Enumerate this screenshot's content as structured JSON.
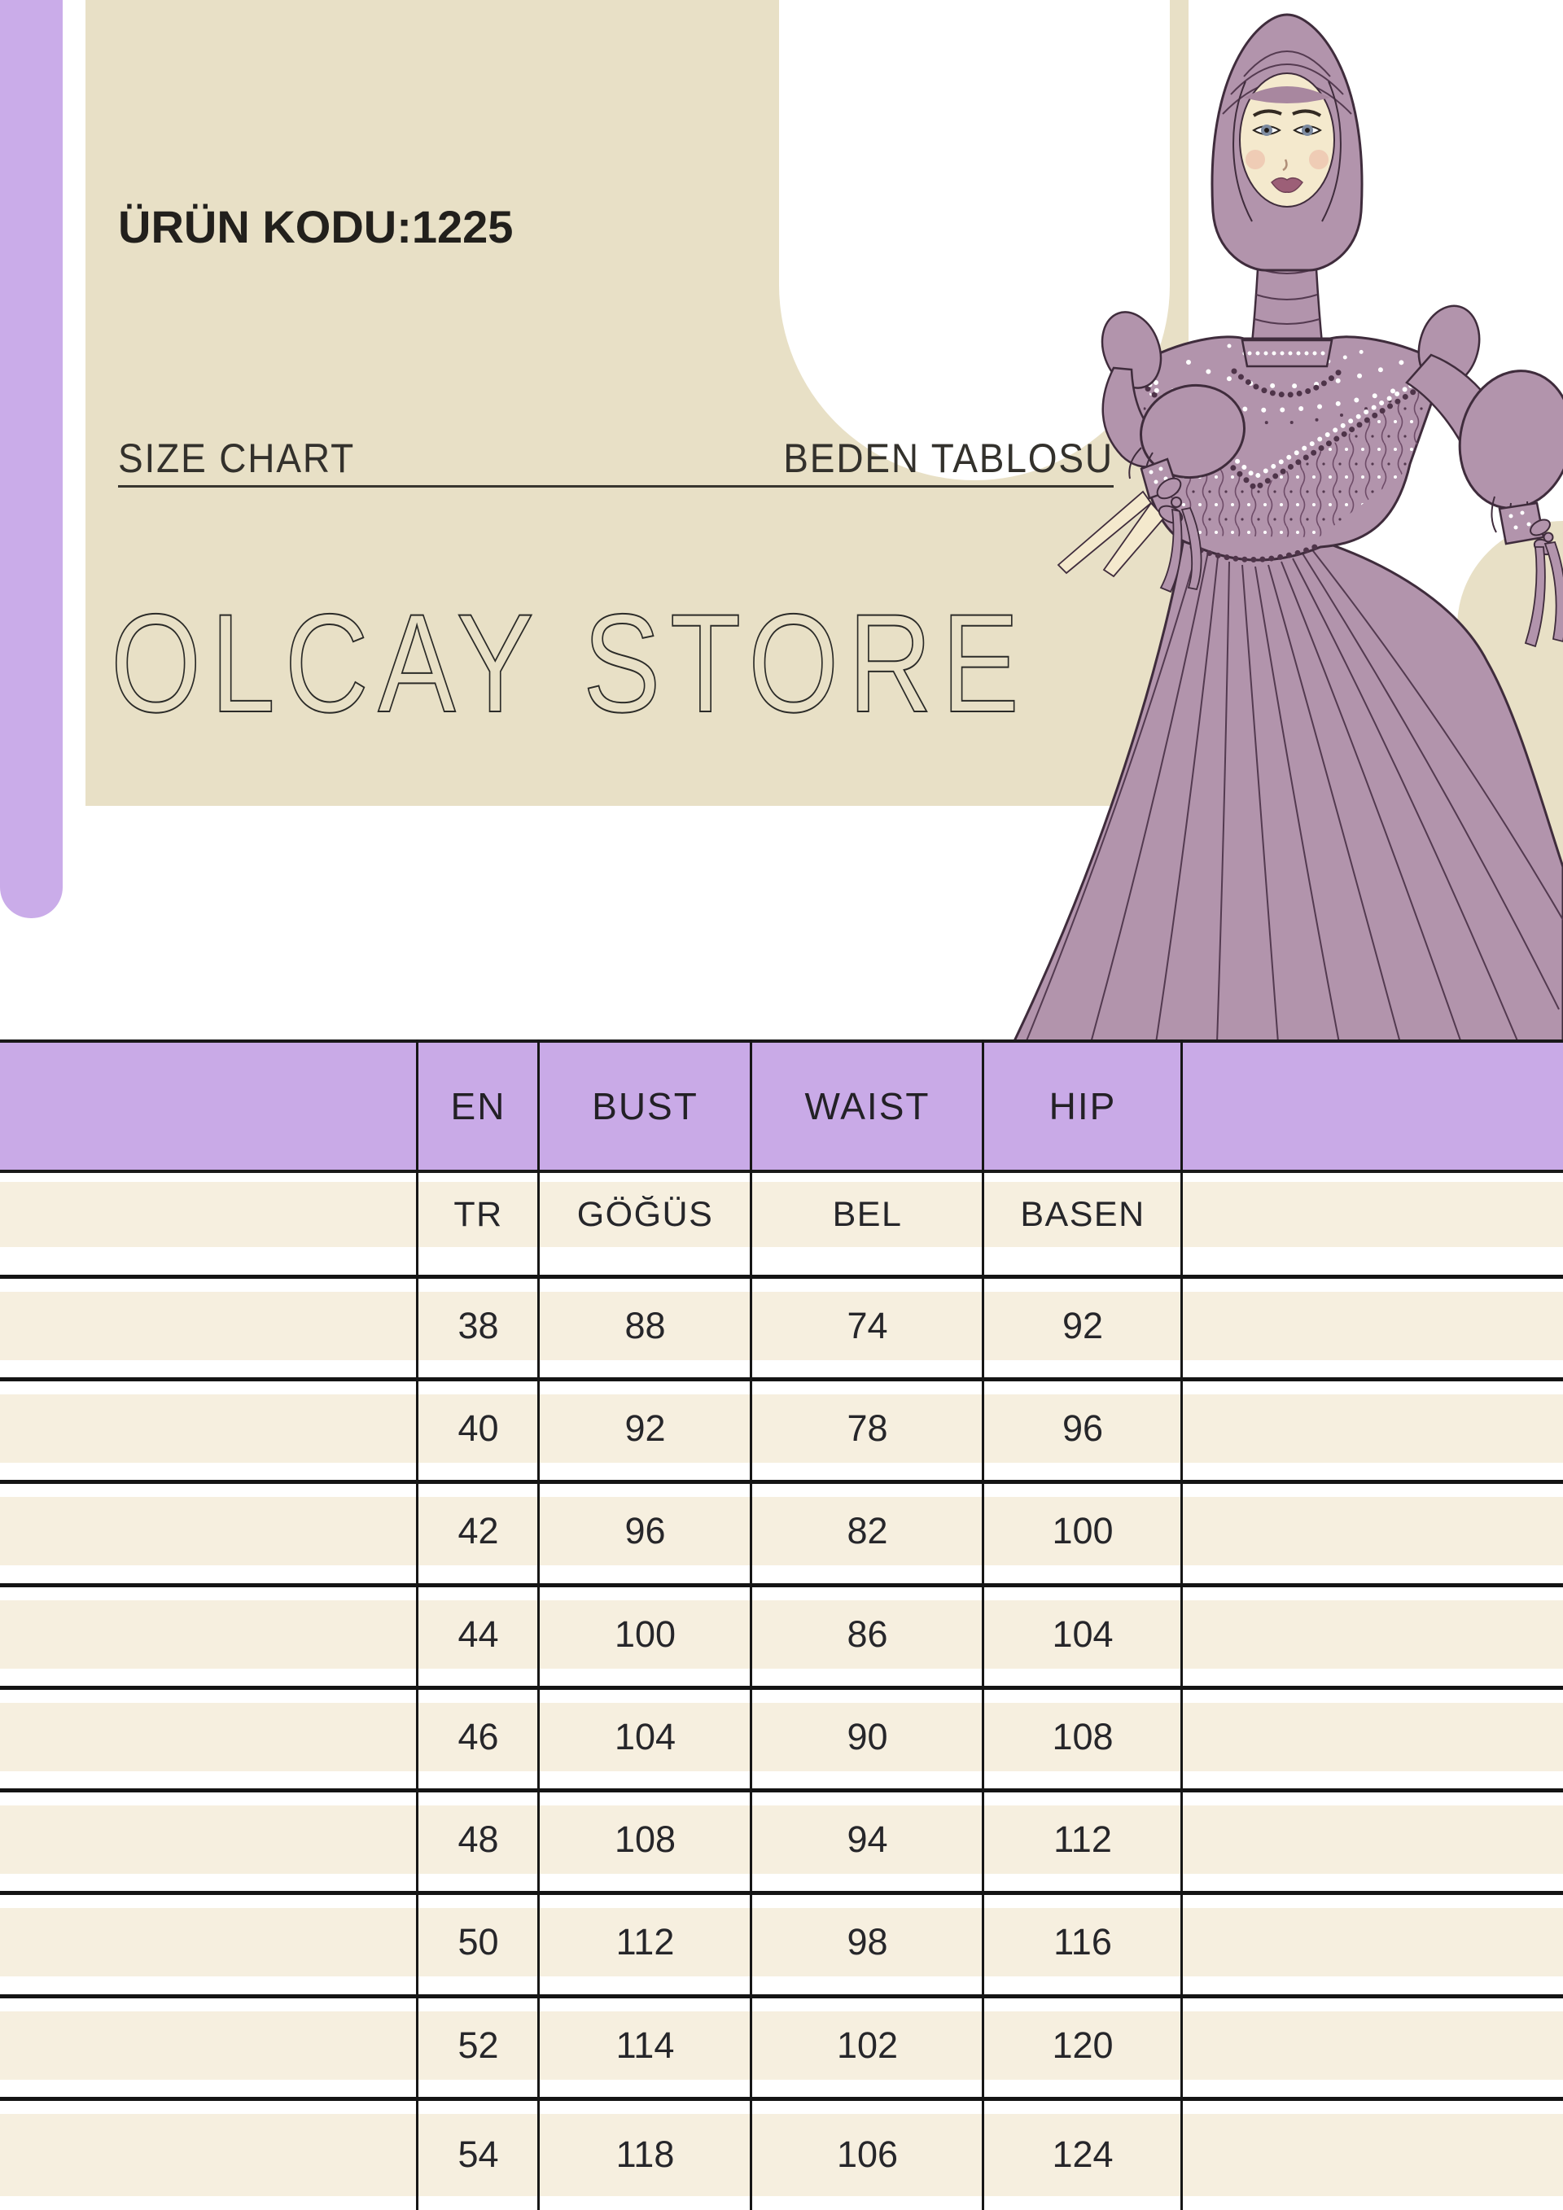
{
  "product": {
    "code": "ÜRÜN KODU:1225"
  },
  "section": {
    "title_en": "SIZE CHART",
    "title_tr": "BEDEN TABLOSU"
  },
  "brand": {
    "name": "OLCAY STORE"
  },
  "size_table": {
    "columns_en": [
      "",
      "EN",
      "BUST",
      "WAIST",
      "HIP",
      ""
    ],
    "columns_tr": [
      "",
      "TR",
      "GÖĞÜS",
      "BEL",
      "BASEN",
      ""
    ],
    "rows": [
      [
        "38",
        "88",
        "74",
        "92"
      ],
      [
        "40",
        "92",
        "78",
        "96"
      ],
      [
        "42",
        "96",
        "82",
        "100"
      ],
      [
        "44",
        "100",
        "86",
        "104"
      ],
      [
        "46",
        "104",
        "90",
        "108"
      ],
      [
        "48",
        "108",
        "94",
        "112"
      ],
      [
        "50",
        "112",
        "98",
        "116"
      ],
      [
        "52",
        "114",
        "102",
        "120"
      ],
      [
        "54",
        "118",
        "106",
        "124"
      ]
    ]
  },
  "illustration": {
    "name": "modest-evening-gown-fashion-sketch"
  },
  "colors": {
    "accent_lavender": "#caace9",
    "header_lavender": "#c9aae7",
    "card_beige": "#e8e0c6",
    "stripe_cream": "#f6efdf",
    "dress_mauve": "#b294ac",
    "line_dark": "#161616"
  }
}
